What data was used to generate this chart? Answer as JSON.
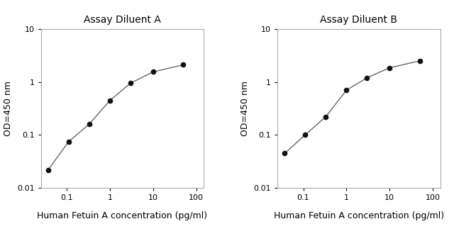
{
  "panel_a": {
    "title": "Assay Diluent A",
    "x": [
      0.037,
      0.11,
      0.33,
      1.0,
      3.0,
      10.0,
      50.0
    ],
    "y": [
      0.022,
      0.075,
      0.16,
      0.45,
      0.95,
      1.55,
      2.1
    ],
    "xlabel": "Human Fetuin A concentration (pg/ml)",
    "ylabel": "OD=450 nm"
  },
  "panel_b": {
    "title": "Assay Diluent B",
    "x": [
      0.037,
      0.11,
      0.33,
      1.0,
      3.0,
      10.0,
      50.0
    ],
    "y": [
      0.045,
      0.1,
      0.22,
      0.7,
      1.2,
      1.85,
      2.5
    ],
    "xlabel": "Human Fetuin A concentration (pg/ml)",
    "ylabel": "OD=450 nm"
  },
  "xlim": [
    0.025,
    150
  ],
  "ylim": [
    0.01,
    10
  ],
  "xticks": [
    0.1,
    1,
    10,
    100
  ],
  "yticks": [
    0.01,
    0.1,
    1,
    10
  ],
  "xtick_labels": [
    "0.1",
    "1",
    "10",
    "100"
  ],
  "ytick_labels": [
    "0.01",
    "0.1",
    "1",
    "10"
  ],
  "line_color": "#666666",
  "marker": "o",
  "marker_color": "#111111",
  "marker_size": 4.5,
  "line_width": 1.0,
  "bg_color": "#ffffff",
  "spine_color": "#aaaaaa",
  "title_fontsize": 10,
  "label_fontsize": 9,
  "tick_fontsize": 8
}
